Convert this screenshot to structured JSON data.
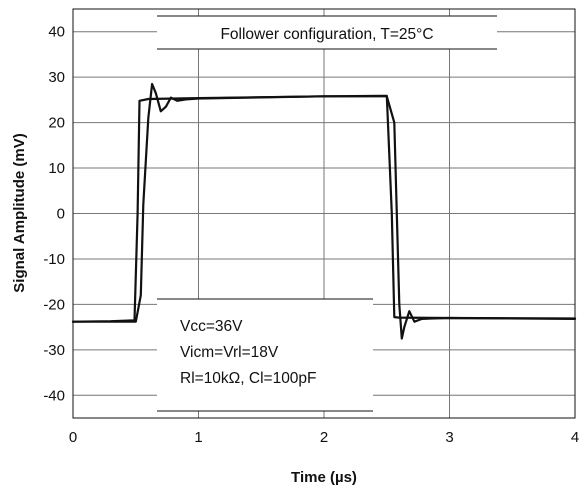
{
  "chart_data": {
    "type": "line",
    "title": "Follower configuration, T=25°C",
    "xlabel": "Time (µs)",
    "ylabel": "Signal Amplitude (mV)",
    "xlim": [
      0,
      4
    ],
    "ylim": [
      -45,
      45
    ],
    "xticks": [
      "0",
      "1",
      "2",
      "3",
      "4"
    ],
    "yticks": [
      "40",
      "30",
      "20",
      "10",
      "0",
      "-10",
      "-20",
      "-30",
      "-40"
    ],
    "grid": true,
    "conditions": [
      "Vcc=36V",
      "Vicm=Vrl=18V",
      "Rl=10kΩ, Cl=100pF"
    ],
    "series": [
      {
        "x": [
          0,
          0.3,
          0.49,
          0.515,
          0.53,
          0.6,
          1.0,
          2.0,
          2.5,
          2.54,
          2.56,
          2.6,
          3.0,
          4.0
        ],
        "values": [
          -23.8,
          -23.7,
          -23.5,
          0,
          24.8,
          25.2,
          25.4,
          25.8,
          25.9,
          0,
          -22.8,
          -22.9,
          -23.0,
          -23.1
        ]
      },
      {
        "x": [
          0,
          0.5,
          0.54,
          0.56,
          0.6,
          0.63,
          0.66,
          0.7,
          0.74,
          0.78,
          0.83,
          0.9,
          1.0,
          2.0,
          2.5,
          2.56,
          2.58,
          2.6,
          2.62,
          2.64,
          2.68,
          2.72,
          2.78,
          2.85,
          3.0,
          4.0
        ],
        "values": [
          -23.8,
          -23.8,
          -18,
          2,
          21,
          28.5,
          26.5,
          22.5,
          23.5,
          25.5,
          24.8,
          25.1,
          25.3,
          25.8,
          25.8,
          20,
          0,
          -20,
          -27.5,
          -25,
          -21.5,
          -23.8,
          -23.2,
          -23.1,
          -23.0,
          -23.2
        ]
      }
    ]
  }
}
